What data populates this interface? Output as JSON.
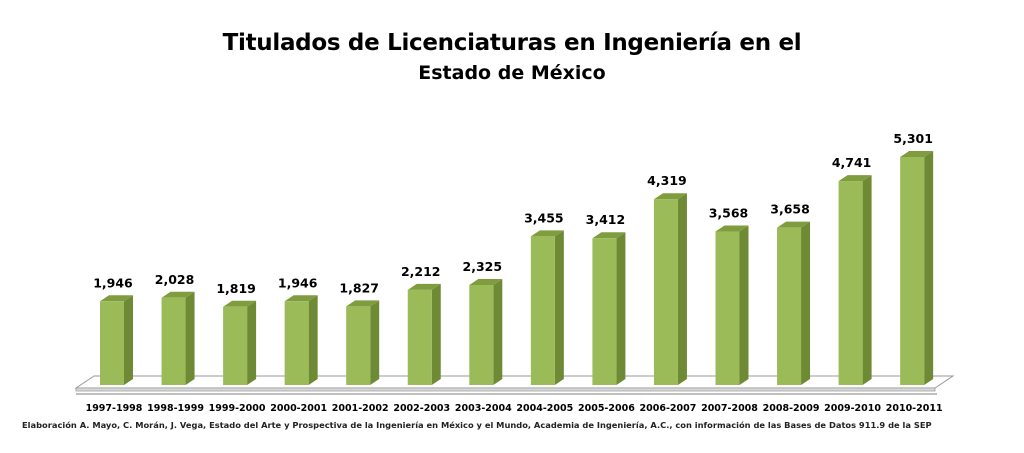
{
  "chart_data": {
    "type": "bar",
    "title": "Titulados de Licenciaturas en Ingeniería en el",
    "subtitle": "Estado de México",
    "categories": [
      "1997-1998",
      "1998-1999",
      "1999-2000",
      "2000-2001",
      "2001-2002",
      "2002-2003",
      "2003-2004",
      "2004-2005",
      "2005-2006",
      "2006-2007",
      "2007-2008",
      "2008-2009",
      "2009-2010",
      "2010-2011"
    ],
    "values": [
      1946,
      2028,
      1819,
      1946,
      1827,
      2212,
      2325,
      3455,
      3412,
      4319,
      3568,
      3658,
      4741,
      5301
    ],
    "data_labels": [
      "1,946",
      "2,028",
      "1,819",
      "1,946",
      "1,827",
      "2,212",
      "2,325",
      "3,455",
      "3,412",
      "4,319",
      "3,568",
      "3,658",
      "4,741",
      "5,301"
    ],
    "xlabel": "",
    "ylabel": "",
    "ylim": [
      0,
      5301
    ],
    "grid": false,
    "legend": "none",
    "style": "3d-column"
  },
  "colors": {
    "bar_front": "#9bbb59",
    "bar_side": "#6f8a35",
    "bar_top": "#7f9d3f",
    "floor": "#ffffff",
    "floor_edge": "#9a9a9a"
  },
  "source_note": "Elaboración A. Mayo, C. Morán, J. Vega, Estado del Arte y Prospectiva de la Ingeniería en México y el Mundo, Academia de Ingeniería, A.C., con información de las Bases de Datos  911.9  de la SEP"
}
